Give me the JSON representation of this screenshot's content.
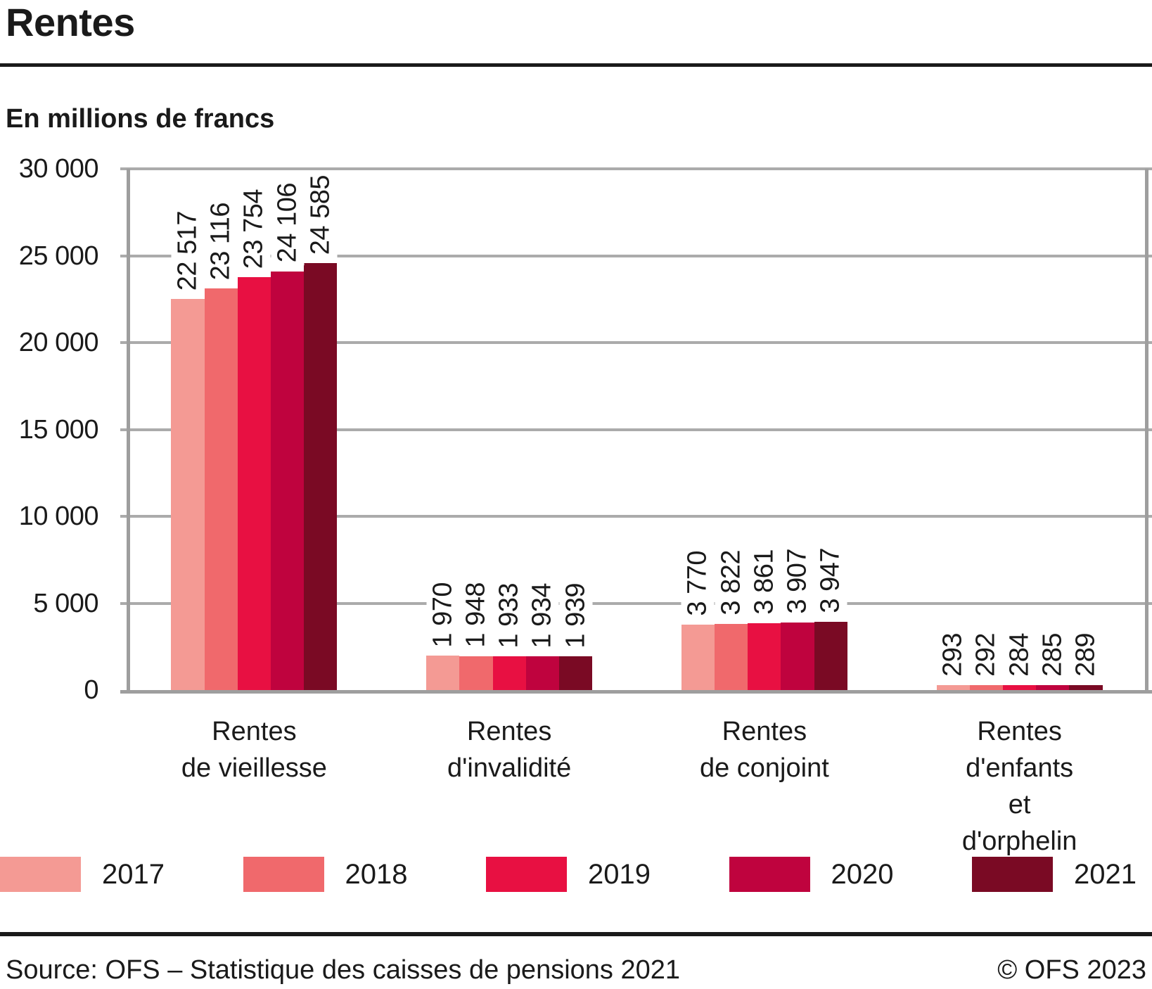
{
  "header": {
    "title": "Rentes"
  },
  "chart_data": {
    "type": "bar",
    "title": "Rentes",
    "ylabel": "En millions de francs",
    "categories": [
      "Rentes de vieillesse",
      "Rentes d'invalidité",
      "Rentes de conjoint",
      "Rentes d'enfants et d'orphelin"
    ],
    "category_label_lines": [
      [
        "Rentes",
        "de vieillesse"
      ],
      [
        "Rentes",
        "d'invalidité"
      ],
      [
        "Rentes",
        "de conjoint"
      ],
      [
        "Rentes",
        "d'enfants",
        "et d'orphelin"
      ]
    ],
    "series": [
      {
        "name": "2017",
        "color": "#f49a94",
        "values": [
          22517,
          1970,
          3770,
          293
        ]
      },
      {
        "name": "2018",
        "color": "#f0696c",
        "values": [
          23116,
          1948,
          3822,
          292
        ]
      },
      {
        "name": "2019",
        "color": "#e81042",
        "values": [
          23754,
          1933,
          3861,
          284
        ]
      },
      {
        "name": "2020",
        "color": "#bf033e",
        "values": [
          24106,
          1934,
          3907,
          285
        ]
      },
      {
        "name": "2021",
        "color": "#7a0a24",
        "values": [
          24585,
          1939,
          3947,
          289
        ]
      }
    ],
    "value_labels": [
      [
        "22 517",
        "23 116",
        "23 754",
        "24 106",
        "24 585"
      ],
      [
        "1 970",
        "1 948",
        "1 933",
        "1 934",
        "1 939"
      ],
      [
        "3 770",
        "3 822",
        "3 861",
        "3 907",
        "3 947"
      ],
      [
        "293",
        "292",
        "284",
        "285",
        "289"
      ]
    ],
    "ylim": [
      0,
      30000
    ],
    "ytick_step": 5000,
    "yticks": [
      "0",
      "5 000",
      "10 000",
      "15 000",
      "20 000",
      "25 000",
      "30 000"
    ],
    "grid": true,
    "legend_position": "bottom"
  },
  "colors": {
    "grid": "#ababab",
    "axis": "#9e9e9e",
    "text": "#1a1a1a",
    "rule": "#1a1a1a"
  },
  "footer": {
    "source": "Source: OFS – Statistique des caisses de pensions 2021",
    "copyright": "© OFS 2023"
  }
}
